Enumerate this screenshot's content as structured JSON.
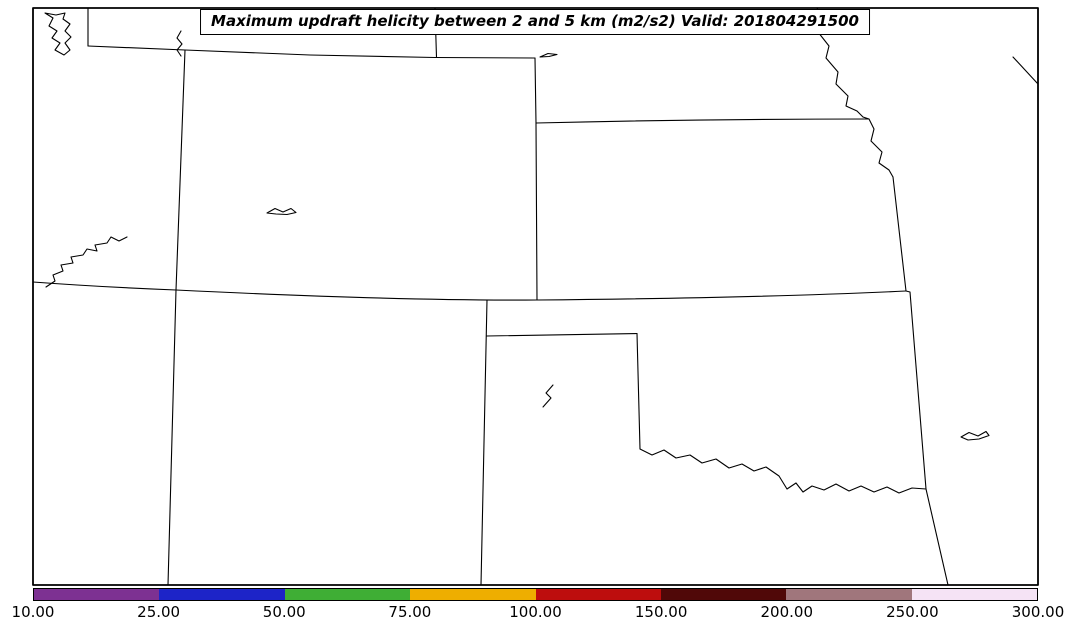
{
  "title": "Maximum updraft helicity between 2 and 5 km (m2/s2) Valid: 201804291500",
  "colorbar": {
    "levels": [
      10,
      25,
      50,
      75,
      100,
      150,
      200,
      250,
      300
    ],
    "tick_labels": [
      "10.00",
      "25.00",
      "50.00",
      "75.00",
      "100.00",
      "150.00",
      "200.00",
      "250.00",
      "300.00"
    ],
    "segment_colors": [
      "#7d3192",
      "#1d24c8",
      "#3fae35",
      "#eeae00",
      "#bd0d0d",
      "#500808",
      "#a0767c",
      "#f5e3f5"
    ]
  }
}
